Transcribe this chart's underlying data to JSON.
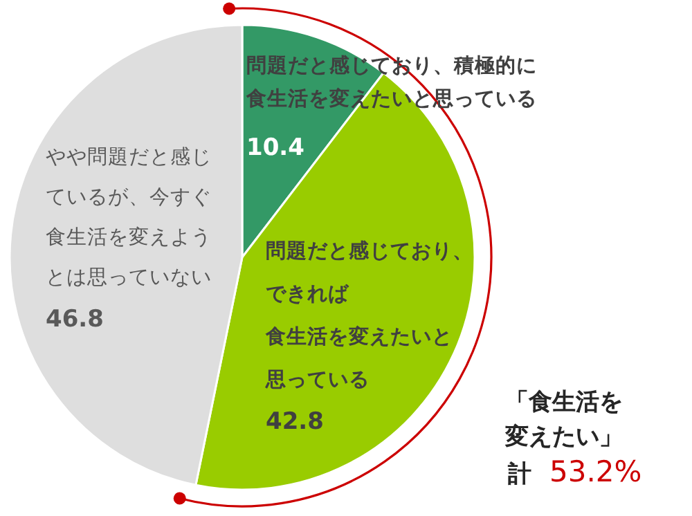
{
  "chart_data": {
    "type": "pie",
    "categories": [
      "問題だと感じており、積極的に食生活を変えたいと思っている",
      "問題だと感じており、できれば食生活を変えたいと思っている",
      "やや問題だと感じているが、今すぐ食生活を変えようとは思っていない"
    ],
    "values": [
      10.4,
      42.8,
      46.8
    ],
    "colors": [
      "#339966",
      "#99cc00",
      "#dedede"
    ],
    "data_labels": true,
    "annotations": [
      "「食生活を変えたい」",
      "計",
      "53.2%"
    ]
  }
}
